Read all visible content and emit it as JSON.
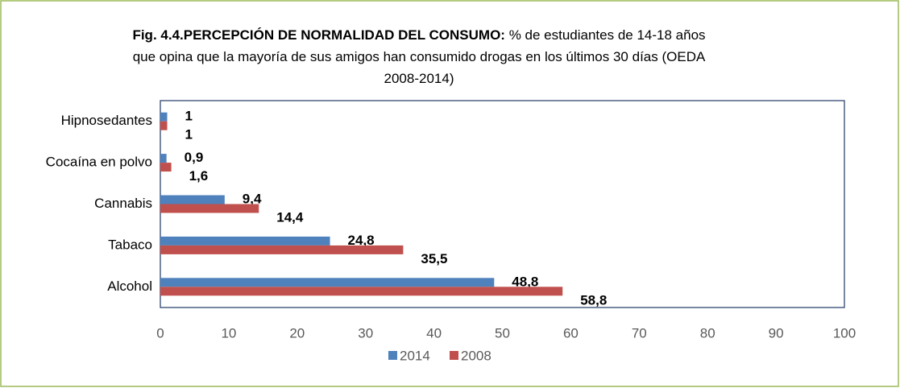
{
  "chart_data": {
    "type": "hbar",
    "title": "Fig. 4.4.PERCEPCIÓN DE NORMALIDAD DEL CONSUMO:",
    "subtitle": "% de estudiantes de 14-18 años que opina que  la mayoría de sus amigos han consumido drogas en los últimos 30 días (OEDA 2008-2014)",
    "categories": [
      "Hipnosedantes",
      "Cocaína en polvo",
      "Cannabis",
      "Tabaco",
      "Alcohol"
    ],
    "series": [
      {
        "name": "2014",
        "color": "#4f81bd",
        "values": [
          1,
          0.9,
          9.4,
          24.8,
          48.8
        ],
        "value_labels": [
          "1",
          "0,9",
          "9,4",
          "24,8",
          "48,8"
        ]
      },
      {
        "name": "2008",
        "color": "#c0504d",
        "values": [
          1,
          1.6,
          14.4,
          35.5,
          58.8
        ],
        "value_labels": [
          "1",
          "1,6",
          "14,4",
          "35,5",
          "58,8"
        ]
      }
    ],
    "xlim": [
      0,
      100
    ],
    "xticks": [
      0,
      10,
      20,
      30,
      40,
      50,
      60,
      70,
      80,
      90,
      100
    ],
    "legend": "bottom"
  }
}
